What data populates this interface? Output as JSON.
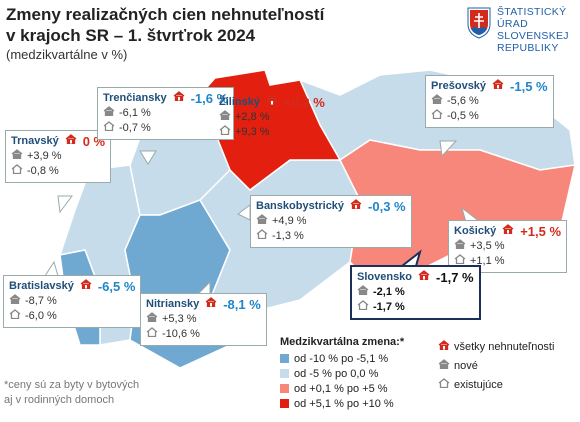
{
  "header": {
    "title": [
      "Zmeny realizačných cien nehnuteľností",
      "v krajoch SR – 1. štvrťrok 2024"
    ],
    "subtitle": "(medzikvartálne v %)"
  },
  "logo": [
    "ŠTATISTICKÝ",
    "ÚRAD",
    "SLOVENSKEJ",
    "REPUBLIKY"
  ],
  "regions": [
    {
      "name": "Trnavský",
      "values": [
        "0 %",
        "+3,9 %",
        "-0,8 %"
      ]
    },
    {
      "name": "Trenčiansky",
      "values": [
        "-1,6 %",
        "-6,1 %",
        "-0,7 %"
      ]
    },
    {
      "name": "Žilinský",
      "values": [
        "+8,2 %",
        "+2,8 %",
        "+9,3 %"
      ]
    },
    {
      "name": "Prešovský",
      "values": [
        "-1,5 %",
        "-5,6 %",
        "-0,5 %"
      ]
    },
    {
      "name": "Banskobystrický",
      "values": [
        "-0,3 %",
        "+4,9 %",
        "-1,3 %"
      ]
    },
    {
      "name": "Košický",
      "values": [
        "+1,5 %",
        "+3,5 %",
        "+1,1 %"
      ]
    },
    {
      "name": "Slovensko",
      "values": [
        "-1,7 %",
        "-2,1 %",
        "-1,7 %"
      ]
    },
    {
      "name": "Bratislavský",
      "values": [
        "-6,5 %",
        "-8,7 %",
        "-6,0 %"
      ]
    },
    {
      "name": "Nitriansky",
      "values": [
        "-8,1 %",
        "+5,3 %",
        "-10,6 %"
      ]
    }
  ],
  "legend": {
    "title": "Medzikvartálna zmena:*",
    "items": [
      {
        "label": "od -10 % po -5,1 %",
        "color": "#6fa8d0"
      },
      {
        "label": "od -5 % po 0,0 %",
        "color": "#c6dcea"
      },
      {
        "label": "od +0,1 % po +5 %",
        "color": "#f7877a"
      },
      {
        "label": "od +5,1 % po +10 %",
        "color": "#e3200f"
      }
    ],
    "symbols": [
      "všetky nehnuteľnosti",
      "nové",
      "existujúce"
    ]
  },
  "footnote": [
    "*ceny sú za byty v bytových",
    "aj v rodinných domoch"
  ]
}
